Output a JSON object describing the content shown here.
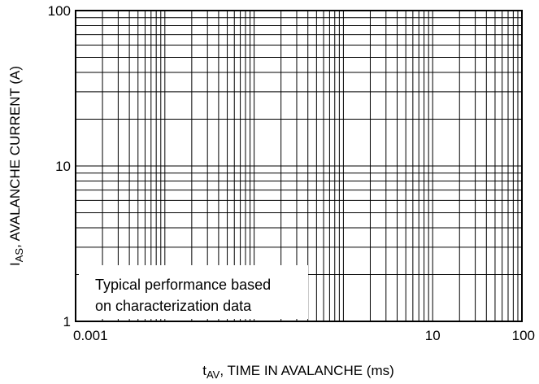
{
  "chart_data": {
    "type": "line",
    "title": "",
    "x_scale": "log",
    "y_scale": "log",
    "xlim": [
      0.001,
      100
    ],
    "ylim": [
      1,
      100
    ],
    "grid": true,
    "grid_type": "log-log",
    "x_ticks": [
      {
        "value": 0.001,
        "label": "0.001"
      },
      {
        "value": 10,
        "label": "10"
      },
      {
        "value": 100,
        "label": "100"
      }
    ],
    "y_ticks": [
      {
        "value": 100,
        "label": "100"
      },
      {
        "value": 10,
        "label": "10"
      },
      {
        "value": 1,
        "label": "1"
      }
    ],
    "xlabel": {
      "main": "t",
      "sub": "AV",
      "rest": ", TIME IN AVALANCHE (ms)"
    },
    "ylabel": {
      "main": "I",
      "sub": "AS",
      "rest": ", AVALANCHE CURRENT (A)"
    },
    "annotation": {
      "lines": [
        "Typical performance based",
        "on characterization data"
      ]
    },
    "series": []
  }
}
